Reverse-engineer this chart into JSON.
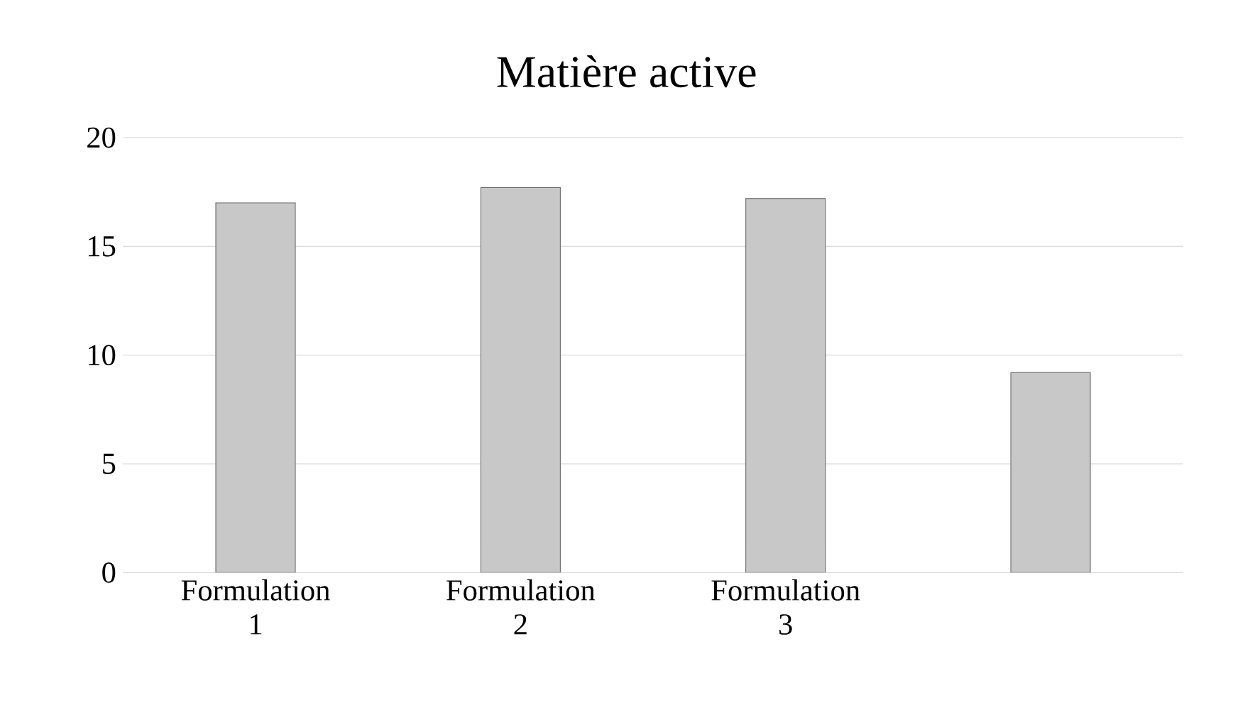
{
  "chart_data": {
    "type": "bar",
    "title": "Matière active",
    "categories": [
      "Formulation 1",
      "Formulation 2",
      "Formulation 3",
      null
    ],
    "values": [
      17,
      17.7,
      17.2,
      9.2
    ],
    "color": "#c8c8c8",
    "ylim": [
      0,
      20
    ],
    "yticks": [
      0,
      5,
      10,
      15,
      20
    ],
    "grid": "y"
  }
}
